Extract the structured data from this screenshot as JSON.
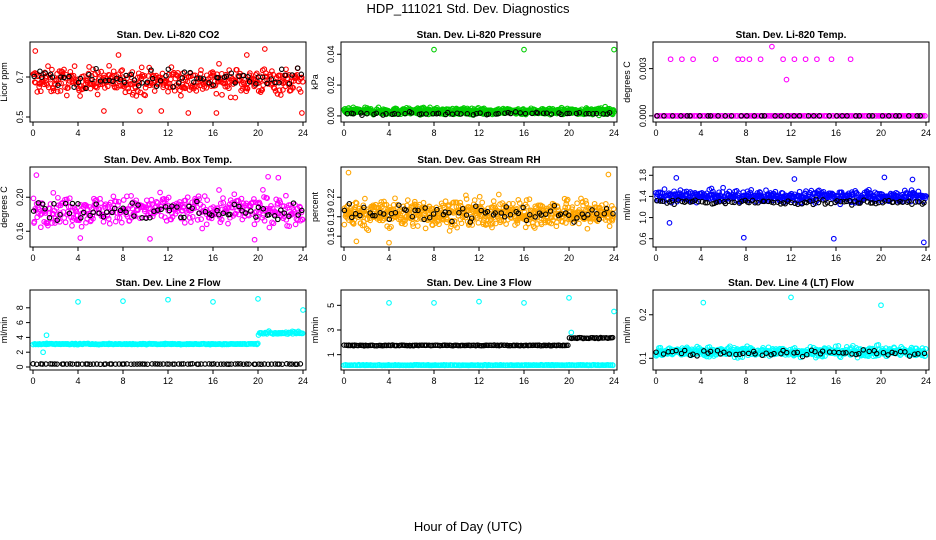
{
  "title": "HDP_111021  Std. Dev. Diagnostics",
  "xlabel": "Hour of Day (UTC)",
  "colors": {
    "red": "#ff0000",
    "green": "#00cc00",
    "magenta": "#ff00ff",
    "orange": "#ffa500",
    "blue": "#0000ff",
    "cyan": "#00ffff",
    "black": "#000000"
  },
  "chart_data": [
    {
      "type": "scatter",
      "title": "Stan. Dev. Li-820 CO2",
      "ylabel": "Licor ppm",
      "xlim": [
        0,
        24
      ],
      "ylim": [
        0.49,
        0.86
      ],
      "xticks": [
        0,
        4,
        8,
        12,
        16,
        20,
        24
      ],
      "yticks": [
        0.5,
        0.7
      ],
      "series": [
        {
          "name": "primary",
          "color": "#ff0000",
          "pattern": {
            "kind": "scatter",
            "center": 0.68,
            "spread": 0.07,
            "n": 420
          },
          "outliers": [
            [
              0.2,
              0.83
            ],
            [
              6.3,
              0.53
            ],
            [
              9.5,
              0.53
            ],
            [
              11.4,
              0.53
            ],
            [
              13.8,
              0.52
            ],
            [
              16.3,
              0.52
            ],
            [
              19.0,
              0.81
            ],
            [
              20.6,
              0.84
            ],
            [
              23.9,
              0.52
            ],
            [
              7.6,
              0.81
            ]
          ]
        },
        {
          "name": "secondary",
          "color": "#000000",
          "pattern": {
            "kind": "scatter",
            "center": 0.69,
            "spread": 0.05,
            "n": 70
          },
          "outliers": []
        }
      ]
    },
    {
      "type": "scatter",
      "title": "Stan. Dev. Li-820 Pressure",
      "ylabel": "kPa",
      "xlim": [
        0,
        24
      ],
      "ylim": [
        -0.002,
        0.046
      ],
      "xticks": [
        0,
        4,
        8,
        12,
        16,
        20,
        24
      ],
      "yticks": [
        0.0,
        0.02,
        0.04
      ],
      "series": [
        {
          "name": "primary",
          "color": "#00cc00",
          "pattern": {
            "kind": "band",
            "center": 0.003,
            "spread": 0.0035,
            "n": 700
          },
          "outliers": [
            [
              8.0,
              0.043
            ],
            [
              16.0,
              0.043
            ],
            [
              24.0,
              0.043
            ]
          ]
        },
        {
          "name": "secondary",
          "color": "#000000",
          "pattern": {
            "kind": "band",
            "center": 0.0015,
            "spread": 0.0015,
            "n": 60
          },
          "outliers": []
        }
      ]
    },
    {
      "type": "scatter",
      "title": "Stan. Dev. Li-820 Temp.",
      "ylabel": "degrees C",
      "xlim": [
        0,
        24
      ],
      "ylim": [
        -0.0002,
        0.0045
      ],
      "xticks": [
        0,
        4,
        8,
        12,
        16,
        20,
        24
      ],
      "yticks": [
        0.0,
        0.003
      ],
      "series": [
        {
          "name": "primary",
          "color": "#ff00ff",
          "pattern": {
            "kind": "flat",
            "center": 0.0,
            "spread": 0.0,
            "n": 160
          },
          "outliers": [
            [
              1.3,
              0.0036
            ],
            [
              2.3,
              0.0036
            ],
            [
              3.3,
              0.0036
            ],
            [
              5.3,
              0.0036
            ],
            [
              7.3,
              0.0036
            ],
            [
              7.7,
              0.0036
            ],
            [
              8.3,
              0.0036
            ],
            [
              9.3,
              0.0036
            ],
            [
              10.3,
              0.0044
            ],
            [
              11.3,
              0.0036
            ],
            [
              11.6,
              0.0023
            ],
            [
              12.3,
              0.0036
            ],
            [
              13.3,
              0.0036
            ],
            [
              14.3,
              0.0036
            ],
            [
              15.6,
              0.0036
            ],
            [
              17.3,
              0.0036
            ]
          ]
        },
        {
          "name": "secondary",
          "color": "#000000",
          "pattern": {
            "kind": "flat",
            "center": 0.0,
            "spread": 0.0,
            "n": 40
          },
          "outliers": []
        }
      ]
    },
    {
      "type": "scatter",
      "title": "Stan. Dev. Amb. Box Temp.",
      "ylabel": "degrees C",
      "xlim": [
        0,
        24
      ],
      "ylim": [
        0.145,
        0.232
      ],
      "xticks": [
        0,
        4,
        8,
        12,
        16,
        20,
        24
      ],
      "yticks": [
        0.16,
        0.2
      ],
      "series": [
        {
          "name": "primary",
          "color": "#ff00ff",
          "pattern": {
            "kind": "scatter",
            "center": 0.185,
            "spread": 0.018,
            "n": 420
          },
          "outliers": [
            [
              0.3,
              0.226
            ],
            [
              20.9,
              0.224
            ],
            [
              21.8,
              0.223
            ],
            [
              4.2,
              0.152
            ],
            [
              10.4,
              0.151
            ],
            [
              19.7,
              0.15
            ]
          ]
        },
        {
          "name": "secondary",
          "color": "#000000",
          "pattern": {
            "kind": "scatter",
            "center": 0.183,
            "spread": 0.013,
            "n": 70
          },
          "outliers": []
        }
      ]
    },
    {
      "type": "scatter",
      "title": "Stan. Dev. Gas Stream RH",
      "ylabel": "percent",
      "xlim": [
        0,
        24
      ],
      "ylim": [
        0.148,
        0.262
      ],
      "xticks": [
        0,
        4,
        8,
        12,
        16,
        20,
        24
      ],
      "yticks": [
        0.16,
        0.19,
        0.22
      ],
      "series": [
        {
          "name": "primary",
          "color": "#ffa500",
          "pattern": {
            "kind": "scatter",
            "center": 0.195,
            "spread": 0.022,
            "n": 650
          },
          "outliers": [
            [
              0.4,
              0.258
            ],
            [
              23.5,
              0.255
            ],
            [
              1.1,
              0.152
            ],
            [
              4.0,
              0.15
            ]
          ]
        },
        {
          "name": "secondary",
          "color": "#000000",
          "pattern": {
            "kind": "scatter",
            "center": 0.195,
            "spread": 0.013,
            "n": 70
          },
          "outliers": []
        }
      ]
    },
    {
      "type": "scatter",
      "title": "Stan. Dev. Sample Flow",
      "ylabel": "ml/min",
      "xlim": [
        0,
        24
      ],
      "ylim": [
        0.5,
        1.9
      ],
      "xticks": [
        0,
        4,
        8,
        12,
        16,
        20,
        24
      ],
      "yticks": [
        0.6,
        1.0,
        1.4,
        1.8
      ],
      "series": [
        {
          "name": "primary",
          "color": "#0000ff",
          "pattern": {
            "kind": "scatter",
            "center": 1.4,
            "spread": 0.12,
            "n": 480
          },
          "outliers": [
            [
              1.2,
              0.9
            ],
            [
              7.8,
              0.62
            ],
            [
              15.8,
              0.6
            ],
            [
              23.8,
              0.53
            ],
            [
              1.8,
              1.75
            ],
            [
              12.3,
              1.73
            ],
            [
              22.8,
              1.72
            ],
            [
              20.3,
              1.76
            ]
          ]
        },
        {
          "name": "secondary",
          "color": "#000000",
          "pattern": {
            "kind": "scatter",
            "center": 1.29,
            "spread": 0.05,
            "n": 90
          },
          "outliers": []
        }
      ]
    },
    {
      "type": "scatter",
      "title": "Stan. Dev. Line 2 Flow",
      "ylabel": "ml/min",
      "xlim": [
        0,
        24
      ],
      "ylim": [
        0,
        10
      ],
      "xticks": [
        0,
        4,
        8,
        12,
        16,
        20,
        24
      ],
      "yticks": [
        0,
        2,
        4,
        6,
        8
      ],
      "series": [
        {
          "name": "primary",
          "color": "#00ffff",
          "pattern": {
            "kind": "line2",
            "center": 3.1,
            "spread": 0.12,
            "n": 260
          },
          "outliers": [
            [
              4.0,
              8.8
            ],
            [
              8.0,
              8.9
            ],
            [
              12.0,
              9.1
            ],
            [
              16.0,
              8.8
            ],
            [
              20.0,
              9.2
            ],
            [
              24.0,
              7.7
            ],
            [
              1.2,
              4.3
            ],
            [
              0.9,
              2.0
            ]
          ]
        },
        {
          "name": "secondary",
          "color": "#000000",
          "pattern": {
            "kind": "band",
            "center": 0.4,
            "spread": 0.05,
            "n": 90
          },
          "outliers": []
        }
      ]
    },
    {
      "type": "scatter",
      "title": "Stan. Dev. Line 3 Flow",
      "ylabel": "ml/min",
      "xlim": [
        0,
        24
      ],
      "ylim": [
        0,
        6
      ],
      "xticks": [
        0,
        4,
        8,
        12,
        16,
        20,
        24
      ],
      "yticks": [
        1,
        3,
        5
      ],
      "series": [
        {
          "name": "primary",
          "color": "#00ffff",
          "pattern": {
            "kind": "band",
            "center": 0.15,
            "spread": 0.04,
            "n": 220
          },
          "outliers": [
            [
              4.0,
              5.2
            ],
            [
              8.0,
              5.2
            ],
            [
              12.0,
              5.3
            ],
            [
              16.0,
              5.2
            ],
            [
              20.0,
              5.6
            ],
            [
              24.0,
              4.5
            ],
            [
              20.2,
              2.8
            ]
          ]
        },
        {
          "name": "secondary",
          "color": "#000000",
          "pattern": {
            "kind": "line3",
            "center": 1.75,
            "spread": 0.05,
            "n": 180
          },
          "outliers": []
        }
      ]
    },
    {
      "type": "scatter",
      "title": "Stan. Dev. Line 4 (LT) Flow",
      "ylabel": "ml/min",
      "xlim": [
        0,
        24
      ],
      "ylim": [
        0.08,
        0.25
      ],
      "xticks": [
        0,
        4,
        8,
        12,
        16,
        20,
        24
      ],
      "yticks": [
        0.1,
        0.2
      ],
      "series": [
        {
          "name": "primary",
          "color": "#00ffff",
          "pattern": {
            "kind": "scatter",
            "center": 0.115,
            "spread": 0.012,
            "n": 520
          },
          "outliers": [
            [
              4.2,
              0.228
            ],
            [
              12.0,
              0.24
            ],
            [
              20.0,
              0.222
            ]
          ]
        },
        {
          "name": "secondary",
          "color": "#000000",
          "pattern": {
            "kind": "scatter",
            "center": 0.113,
            "spread": 0.008,
            "n": 60
          },
          "outliers": []
        }
      ]
    }
  ]
}
